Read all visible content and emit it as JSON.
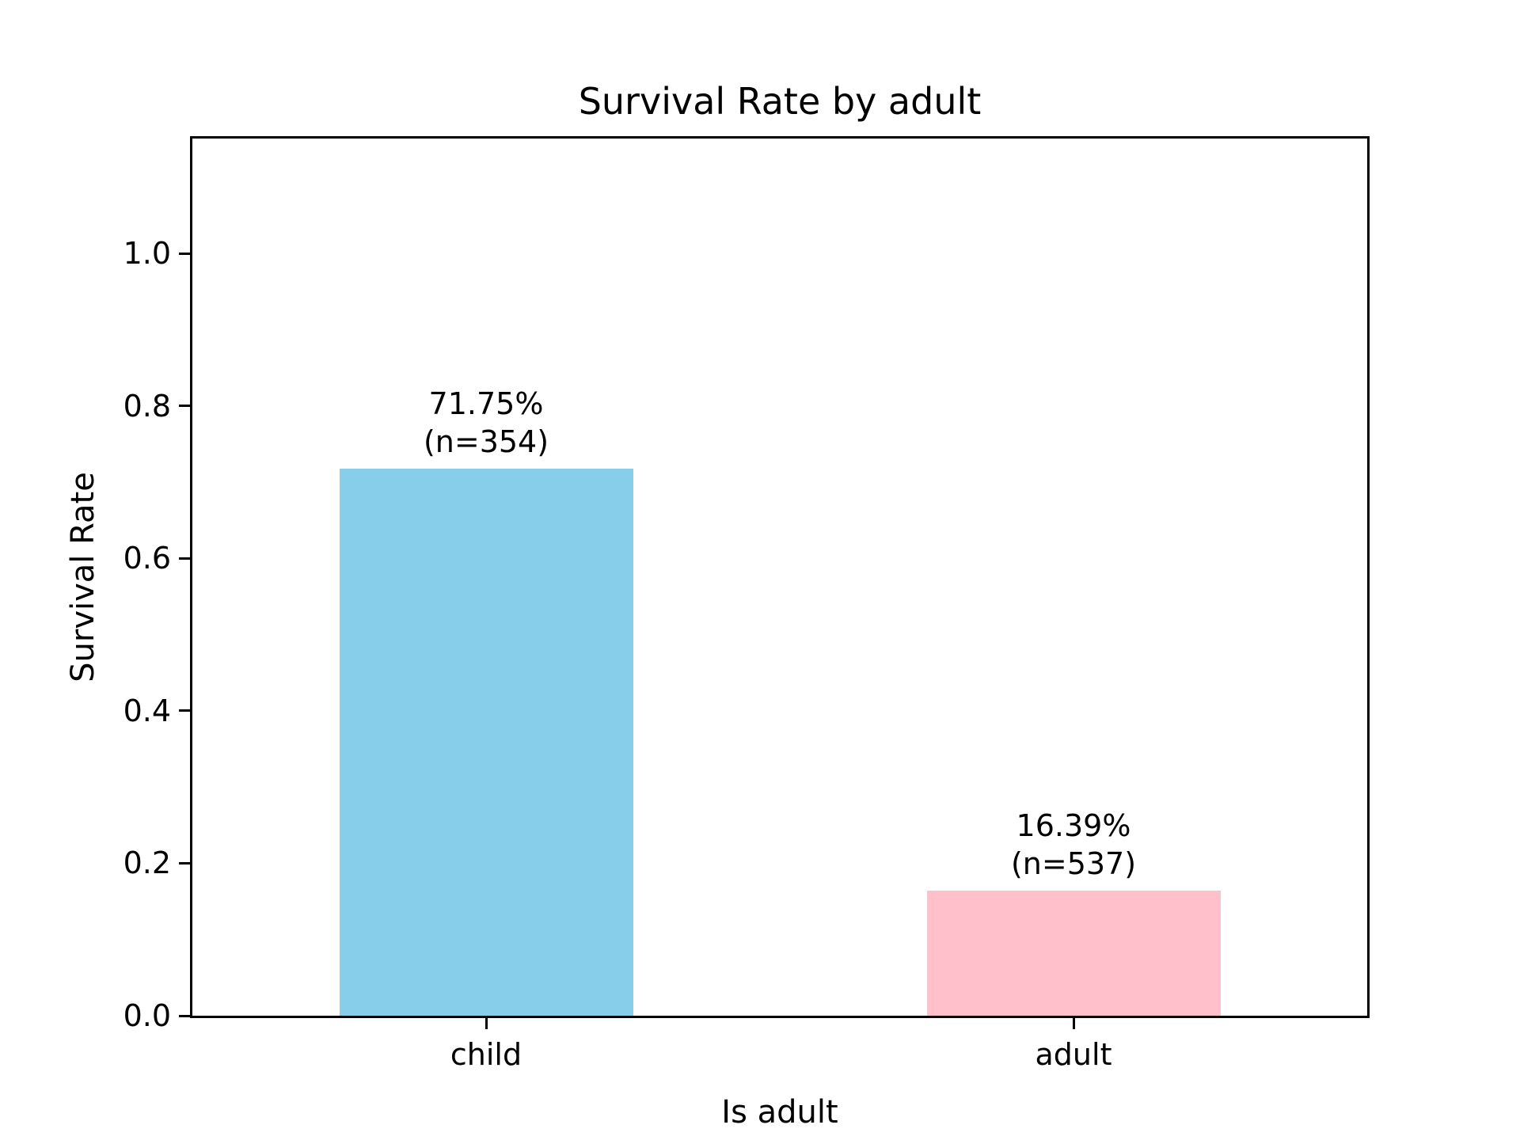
{
  "chart_data": {
    "type": "bar",
    "title": "Survival Rate by adult",
    "xlabel": "Is adult",
    "ylabel": "Survival Rate",
    "categories": [
      "child",
      "adult"
    ],
    "values": [
      0.7175,
      0.1639
    ],
    "counts": [
      354,
      537
    ],
    "bar_labels": [
      [
        "71.75%",
        "(n=354)"
      ],
      [
        "16.39%",
        "(n=537)"
      ]
    ],
    "bar_colors": [
      "#87CEEB",
      "#FFC0CB"
    ],
    "yticks": [
      "0.0",
      "0.2",
      "0.4",
      "0.6",
      "0.8",
      "1.0"
    ],
    "ylim": [
      0,
      1.15
    ],
    "xlim": [
      -0.5,
      1.5
    ],
    "bar_width_units": 0.5,
    "grid": false,
    "legend": null,
    "frame": "full-box",
    "background_color": "#ffffff",
    "text_color": "#000000"
  }
}
